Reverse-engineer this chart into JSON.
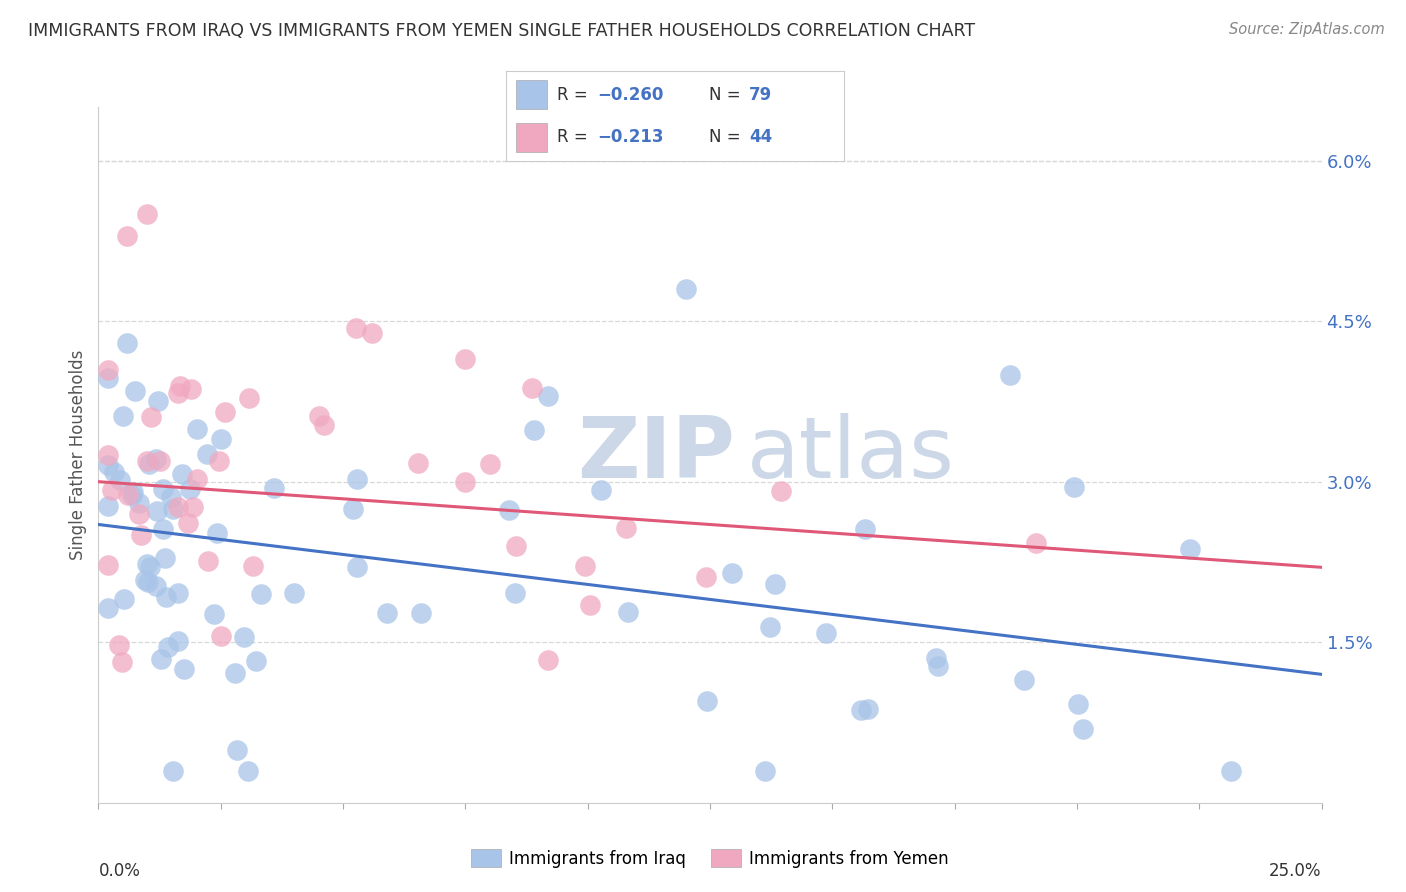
{
  "title": "IMMIGRANTS FROM IRAQ VS IMMIGRANTS FROM YEMEN SINGLE FATHER HOUSEHOLDS CORRELATION CHART",
  "source": "Source: ZipAtlas.com",
  "ylabel": "Single Father Households",
  "ylabel_right_ticks": [
    "1.5%",
    "3.0%",
    "4.5%",
    "6.0%"
  ],
  "ylabel_right_vals": [
    0.015,
    0.03,
    0.045,
    0.06
  ],
  "x_min": 0.0,
  "x_max": 0.25,
  "y_min": 0.0,
  "y_max": 0.065,
  "legend_label_iraq": "Immigrants from Iraq",
  "legend_label_yemen": "Immigrants from Yemen",
  "color_iraq": "#a8c4e8",
  "color_yemen": "#f0a8c0",
  "color_trend_iraq": "#4472c4",
  "color_trend_yemen": "#e05878",
  "color_legend_text": "#4472c4",
  "watermark_zip": "ZIP",
  "watermark_atlas": "atlas",
  "watermark_color": "#ccd8e8",
  "background_color": "#ffffff",
  "grid_color": "#d8d8d8",
  "grid_linestyle": "--",
  "iraq_trend_x0": 0.0,
  "iraq_trend_y0": 0.026,
  "iraq_trend_x1": 0.25,
  "iraq_trend_y1": 0.012,
  "yemen_trend_x0": 0.0,
  "yemen_trend_y0": 0.03,
  "yemen_trend_x1": 0.25,
  "yemen_trend_y1": 0.022
}
